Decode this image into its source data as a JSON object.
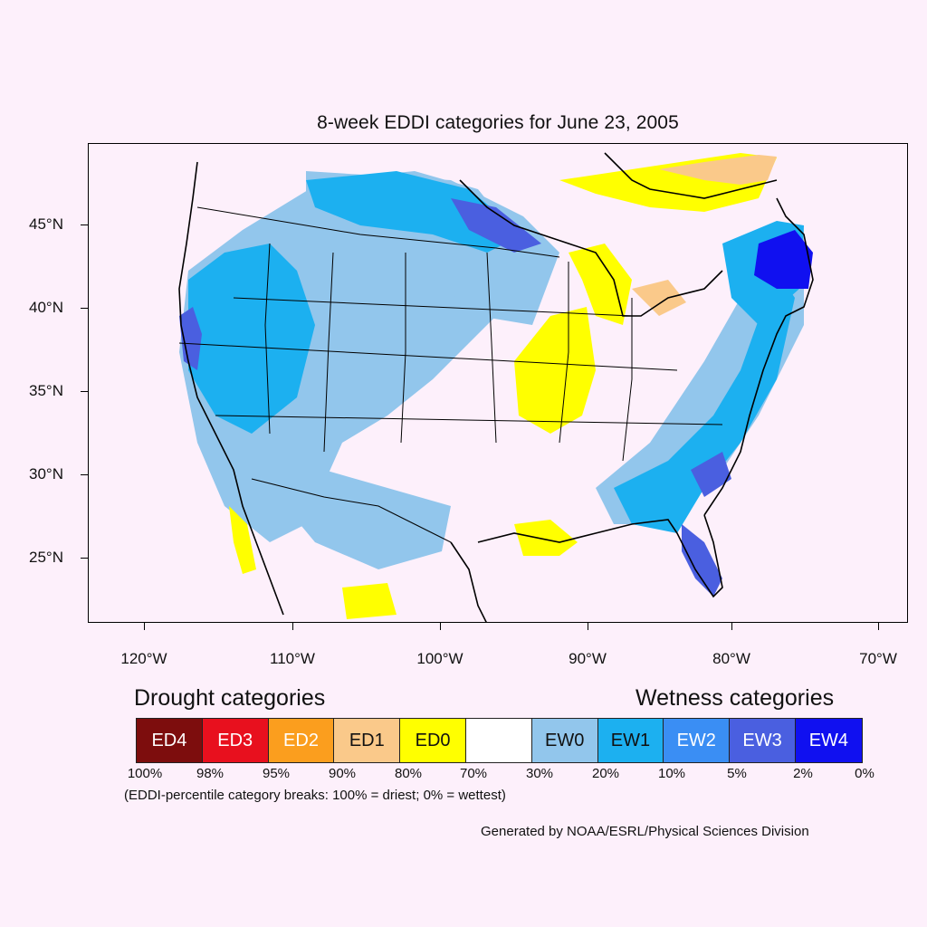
{
  "title": "8-week EDDI categories for June 23, 2005",
  "map": {
    "lat_ticks": [
      "45°N",
      "40°N",
      "35°N",
      "30°N",
      "25°N"
    ],
    "lon_ticks": [
      "120°W",
      "110°W",
      "100°W",
      "90°W",
      "80°W",
      "70°W"
    ],
    "colors": {
      "ED0": "#ffff00",
      "ED1": "#fac98a",
      "EW0": "#92c6ec",
      "EW1": "#1cb0f0",
      "EW2": "#3a8ef4",
      "EW3": "#4a5fe0",
      "EW4": "#1010f0"
    }
  },
  "legend": {
    "drought_heading": "Drought categories",
    "wetness_heading": "Wetness categories",
    "categories": [
      {
        "label": "ED4",
        "color": "#7d0d0d",
        "text_color": "#ffffff"
      },
      {
        "label": "ED3",
        "color": "#e8101e",
        "text_color": "#ffffff"
      },
      {
        "label": "ED2",
        "color": "#fb9e1e",
        "text_color": "#ffffff"
      },
      {
        "label": "ED1",
        "color": "#fac98a",
        "text_color": "#111111"
      },
      {
        "label": "ED0",
        "color": "#ffff00",
        "text_color": "#111111"
      },
      {
        "label": "",
        "color": "#ffffff",
        "text_color": "#111111"
      },
      {
        "label": "EW0",
        "color": "#92c6ec",
        "text_color": "#111111"
      },
      {
        "label": "EW1",
        "color": "#1cb0f0",
        "text_color": "#111111"
      },
      {
        "label": "EW2",
        "color": "#3a8ef4",
        "text_color": "#ffffff"
      },
      {
        "label": "EW3",
        "color": "#4a5fe0",
        "text_color": "#ffffff"
      },
      {
        "label": "EW4",
        "color": "#1010f0",
        "text_color": "#ffffff"
      }
    ],
    "percentiles": [
      "100%",
      "98%",
      "95%",
      "90%",
      "80%",
      "70%",
      "30%",
      "20%",
      "10%",
      "5%",
      "2%",
      "0%"
    ],
    "note": "(EDDI-percentile category breaks: 100% = driest; 0% = wettest)"
  },
  "credit": "Generated by NOAA/ESRL/Physical Sciences Division"
}
